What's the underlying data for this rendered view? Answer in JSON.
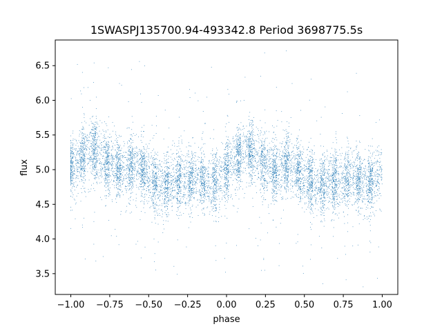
{
  "chart_data": {
    "type": "scatter",
    "title": "1SWASPJ135700.94-493342.8 Period 3698775.5s",
    "xlabel": "phase",
    "ylabel": "flux",
    "xlim": [
      -1.1,
      1.1
    ],
    "ylim": [
      3.2,
      6.87
    ],
    "x_ticks": [
      -1.0,
      -0.75,
      -0.5,
      -0.25,
      0.0,
      0.25,
      0.5,
      0.75,
      1.0
    ],
    "x_tick_labels": [
      "−1.00",
      "−0.75",
      "−0.50",
      "−0.25",
      "0.00",
      "0.25",
      "0.50",
      "0.75",
      "1.00"
    ],
    "y_ticks": [
      3.5,
      4.0,
      4.5,
      5.0,
      5.5,
      6.0,
      6.5
    ],
    "y_tick_labels": [
      "3.5",
      "4.0",
      "4.5",
      "5.0",
      "5.5",
      "6.0",
      "6.5"
    ],
    "grid": false,
    "legend": "none",
    "point_color": "#1f77b4",
    "series": [
      {
        "profile_phase": [
          0.0,
          0.05,
          0.1,
          0.15,
          0.2,
          0.25,
          0.3,
          0.35,
          0.4,
          0.45,
          0.5,
          0.55,
          0.6,
          0.65,
          0.7,
          0.75,
          0.8,
          0.85,
          0.9,
          0.95,
          1.0
        ],
        "profile_flux": [
          5.0,
          5.15,
          5.25,
          5.3,
          5.15,
          5.05,
          5.0,
          5.0,
          5.1,
          5.0,
          4.9,
          4.8,
          4.75,
          4.8,
          4.85,
          4.85,
          4.9,
          4.85,
          4.8,
          4.85,
          5.0
        ],
        "scatter_sd": 0.22,
        "approx_point_count": 9000
      }
    ]
  }
}
